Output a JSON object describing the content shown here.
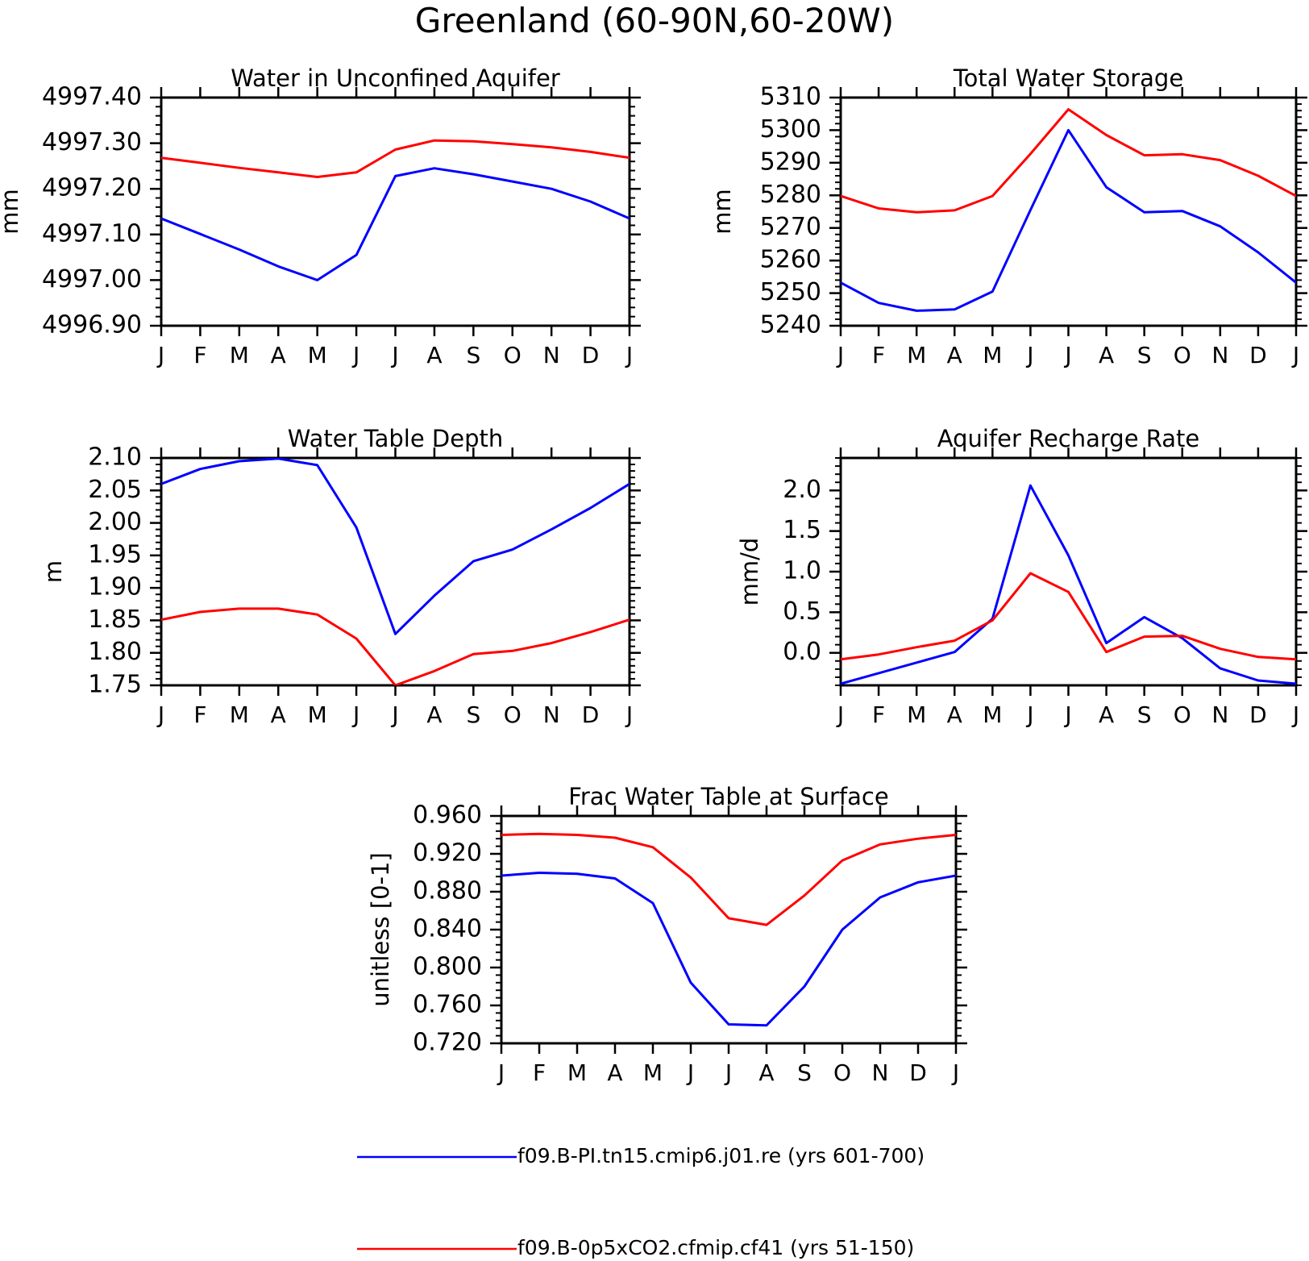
{
  "figure_title": "Greenland (60-90N,60-20W)",
  "months": [
    "J",
    "F",
    "M",
    "A",
    "M",
    "J",
    "J",
    "A",
    "S",
    "O",
    "N",
    "D",
    "J"
  ],
  "colors": {
    "series_1": "#0000ff",
    "series_2": "#ff0000",
    "axes": "#000000"
  },
  "legend": [
    {
      "label": "f09.B-PI.tn15.cmip6.j01.re (yrs 601-700)",
      "color": "#0000ff"
    },
    {
      "label": "f09.B-0p5xCO2.cfmip.cf41 (yrs 51-150)",
      "color": "#ff0000"
    }
  ],
  "chart_data": [
    {
      "type": "line",
      "title": "Water in Unconfined Aquifer",
      "ylabel": "mm",
      "xlabel": "",
      "ylim": [
        4996.9,
        4997.4
      ],
      "yticks": [
        4996.9,
        4997.0,
        4997.1,
        4997.2,
        4997.3,
        4997.4
      ],
      "ytick_labels": [
        "4996.90",
        "4997.00",
        "4997.10",
        "4997.20",
        "4997.30",
        "4997.40"
      ],
      "categories": [
        "J",
        "F",
        "M",
        "A",
        "M",
        "J",
        "J",
        "A",
        "S",
        "O",
        "N",
        "D",
        "J"
      ],
      "series": [
        {
          "color": "#0000ff",
          "values": [
            4997.135,
            4997.101,
            4997.067,
            4997.03,
            4997.0,
            4997.055,
            4997.228,
            4997.245,
            4997.232,
            4997.216,
            4997.2,
            4997.172,
            4997.135
          ]
        },
        {
          "color": "#ff0000",
          "values": [
            4997.268,
            4997.257,
            4997.246,
            4997.236,
            4997.226,
            4997.236,
            4997.286,
            4997.306,
            4997.304,
            4997.298,
            4997.291,
            4997.281,
            4997.268
          ]
        }
      ]
    },
    {
      "type": "line",
      "title": "Total Water Storage",
      "ylabel": "mm",
      "xlabel": "",
      "ylim": [
        5240,
        5310
      ],
      "yticks": [
        5240,
        5250,
        5260,
        5270,
        5280,
        5290,
        5300,
        5310
      ],
      "ytick_labels": [
        "5240",
        "5250",
        "5260",
        "5270",
        "5280",
        "5290",
        "5300",
        "5310"
      ],
      "categories": [
        "J",
        "F",
        "M",
        "A",
        "M",
        "J",
        "J",
        "A",
        "S",
        "O",
        "N",
        "D",
        "J"
      ],
      "series": [
        {
          "color": "#0000ff",
          "values": [
            5253.2,
            5247.0,
            5244.6,
            5245.0,
            5250.5,
            5275.5,
            5300.0,
            5282.5,
            5274.8,
            5275.2,
            5270.5,
            5262.5,
            5253.2
          ]
        },
        {
          "color": "#ff0000",
          "values": [
            5279.8,
            5276.0,
            5274.8,
            5275.4,
            5279.8,
            5292.7,
            5306.4,
            5298.5,
            5292.3,
            5292.6,
            5290.8,
            5286.0,
            5279.8
          ]
        }
      ]
    },
    {
      "type": "line",
      "title": "Water Table Depth",
      "ylabel": "m",
      "xlabel": "",
      "ylim": [
        1.75,
        2.1
      ],
      "yticks": [
        1.75,
        1.8,
        1.85,
        1.9,
        1.95,
        2.0,
        2.05,
        2.1
      ],
      "ytick_labels": [
        "1.75",
        "1.80",
        "1.85",
        "1.90",
        "1.95",
        "2.00",
        "2.05",
        "2.10"
      ],
      "categories": [
        "J",
        "F",
        "M",
        "A",
        "M",
        "J",
        "J",
        "A",
        "S",
        "O",
        "N",
        "D",
        "J"
      ],
      "series": [
        {
          "color": "#0000ff",
          "values": [
            2.06,
            2.083,
            2.095,
            2.099,
            2.089,
            1.993,
            1.829,
            1.888,
            1.941,
            1.959,
            1.99,
            2.023,
            2.06
          ]
        },
        {
          "color": "#ff0000",
          "values": [
            1.851,
            1.863,
            1.868,
            1.868,
            1.859,
            1.822,
            1.75,
            1.772,
            1.798,
            1.803,
            1.815,
            1.832,
            1.851
          ]
        }
      ]
    },
    {
      "type": "line",
      "title": "Aquifer Recharge Rate",
      "ylabel": "mm/d",
      "xlabel": "",
      "ylim": [
        -0.4,
        2.4
      ],
      "yticks": [
        0.0,
        0.5,
        1.0,
        1.5,
        2.0
      ],
      "ytick_labels": [
        "0.0",
        "0.5",
        "1.0",
        "1.5",
        "2.0"
      ],
      "categories": [
        "J",
        "F",
        "M",
        "A",
        "M",
        "J",
        "J",
        "A",
        "S",
        "O",
        "N",
        "D",
        "J"
      ],
      "series": [
        {
          "color": "#0000ff",
          "values": [
            -0.38,
            -0.25,
            -0.12,
            0.01,
            0.42,
            2.06,
            1.2,
            0.12,
            0.44,
            0.18,
            -0.19,
            -0.34,
            -0.38
          ]
        },
        {
          "color": "#ff0000",
          "values": [
            -0.08,
            -0.02,
            0.07,
            0.15,
            0.4,
            0.98,
            0.75,
            0.01,
            0.2,
            0.21,
            0.05,
            -0.05,
            -0.08
          ]
        }
      ]
    },
    {
      "type": "line",
      "title": "Frac Water Table at Surface",
      "ylabel": "unitless [0-1]",
      "xlabel": "",
      "ylim": [
        0.72,
        0.96
      ],
      "yticks": [
        0.72,
        0.76,
        0.8,
        0.84,
        0.88,
        0.92,
        0.96
      ],
      "ytick_labels": [
        "0.720",
        "0.760",
        "0.800",
        "0.840",
        "0.880",
        "0.920",
        "0.960"
      ],
      "categories": [
        "J",
        "F",
        "M",
        "A",
        "M",
        "J",
        "J",
        "A",
        "S",
        "O",
        "N",
        "D",
        "J"
      ],
      "series": [
        {
          "color": "#0000ff",
          "values": [
            0.897,
            0.9,
            0.899,
            0.894,
            0.868,
            0.784,
            0.74,
            0.739,
            0.78,
            0.84,
            0.874,
            0.89,
            0.897
          ]
        },
        {
          "color": "#ff0000",
          "values": [
            0.94,
            0.941,
            0.94,
            0.937,
            0.927,
            0.895,
            0.852,
            0.845,
            0.876,
            0.913,
            0.93,
            0.936,
            0.94
          ]
        }
      ]
    }
  ]
}
